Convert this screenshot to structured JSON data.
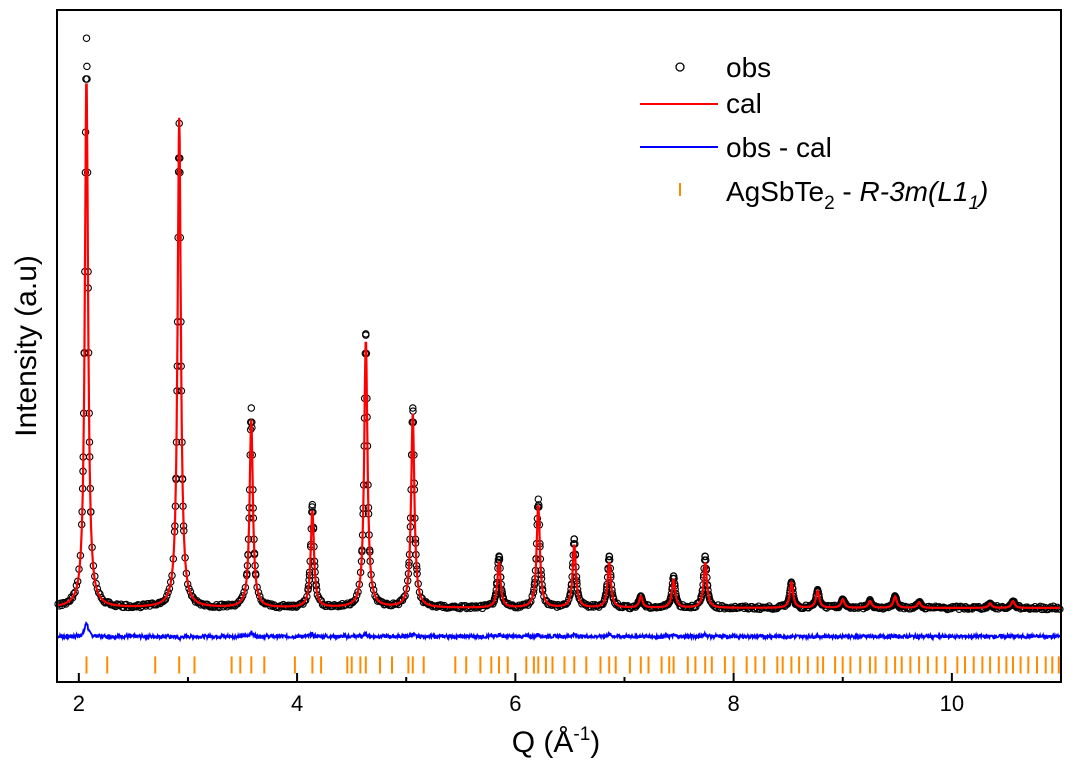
{
  "colors": {
    "obs": "#000000",
    "cal": "#ff0000",
    "diff": "#0000ff",
    "ticks": "#ff8c00"
  },
  "legend": {
    "obs": "obs",
    "cal": "cal",
    "diff": "obs - cal",
    "phase_a": "AgSbTe",
    "phase_sub": "2",
    "phase_b": " - ",
    "phase_c": "R-3m(L1",
    "phase_sub2": "1",
    "phase_d": ")"
  },
  "chart_data": {
    "type": "line",
    "title": "",
    "xlabel": "Q (Å",
    "xlabel_sup": "-1",
    "xlabel_end": ")",
    "ylabel": "Intensity (a.u)",
    "xlim": [
      1.8,
      11.0
    ],
    "ylim": [
      -0.13,
      1.05
    ],
    "xticks": [
      2,
      4,
      6,
      8,
      10
    ],
    "xtick_labels": [
      "2",
      "4",
      "6",
      "8",
      "10"
    ],
    "baseline": 0.0,
    "diff_offset": -0.05,
    "bragg_row": [
      -0.115,
      -0.085
    ],
    "peaks": [
      {
        "q": 2.07,
        "obs": 1.0,
        "cal": 0.93
      },
      {
        "q": 2.92,
        "obs": 0.85,
        "cal": 0.86
      },
      {
        "q": 3.58,
        "obs": 0.35,
        "cal": 0.33
      },
      {
        "q": 4.14,
        "obs": 0.18,
        "cal": 0.17
      },
      {
        "q": 4.63,
        "obs": 0.48,
        "cal": 0.47
      },
      {
        "q": 5.06,
        "obs": 0.35,
        "cal": 0.34
      },
      {
        "q": 5.85,
        "obs": 0.09,
        "cal": 0.08
      },
      {
        "q": 6.21,
        "obs": 0.19,
        "cal": 0.18
      },
      {
        "q": 6.54,
        "obs": 0.12,
        "cal": 0.11
      },
      {
        "q": 6.86,
        "obs": 0.09,
        "cal": 0.08
      },
      {
        "q": 7.15,
        "obs": 0.02,
        "cal": 0.02
      },
      {
        "q": 7.45,
        "obs": 0.055,
        "cal": 0.05
      },
      {
        "q": 7.74,
        "obs": 0.09,
        "cal": 0.08
      },
      {
        "q": 8.53,
        "obs": 0.045,
        "cal": 0.045
      },
      {
        "q": 8.77,
        "obs": 0.03,
        "cal": 0.03
      },
      {
        "q": 9.0,
        "obs": 0.015,
        "cal": 0.015
      },
      {
        "q": 9.25,
        "obs": 0.012,
        "cal": 0.012
      },
      {
        "q": 9.48,
        "obs": 0.02,
        "cal": 0.02
      },
      {
        "q": 9.7,
        "obs": 0.01,
        "cal": 0.01
      },
      {
        "q": 10.35,
        "obs": 0.008,
        "cal": 0.008
      },
      {
        "q": 10.56,
        "obs": 0.012,
        "cal": 0.012
      }
    ],
    "bragg_positions": [
      2.07,
      2.26,
      2.7,
      2.92,
      3.06,
      3.4,
      3.48,
      3.58,
      3.7,
      3.98,
      4.14,
      4.22,
      4.46,
      4.5,
      4.58,
      4.63,
      4.76,
      4.87,
      5.02,
      5.06,
      5.16,
      5.45,
      5.55,
      5.68,
      5.78,
      5.85,
      5.93,
      6.1,
      6.17,
      6.21,
      6.28,
      6.34,
      6.45,
      6.54,
      6.65,
      6.78,
      6.86,
      6.92,
      7.05,
      7.15,
      7.22,
      7.34,
      7.41,
      7.45,
      7.58,
      7.65,
      7.74,
      7.8,
      7.92,
      8.0,
      8.12,
      8.2,
      8.28,
      8.4,
      8.45,
      8.53,
      8.6,
      8.68,
      8.77,
      8.82,
      8.93,
      9.0,
      9.07,
      9.16,
      9.25,
      9.3,
      9.4,
      9.48,
      9.54,
      9.62,
      9.7,
      9.78,
      9.86,
      9.94,
      10.05,
      10.12,
      10.2,
      10.28,
      10.35,
      10.43,
      10.5,
      10.56,
      10.63,
      10.7,
      10.78,
      10.86,
      10.92,
      10.98
    ]
  }
}
